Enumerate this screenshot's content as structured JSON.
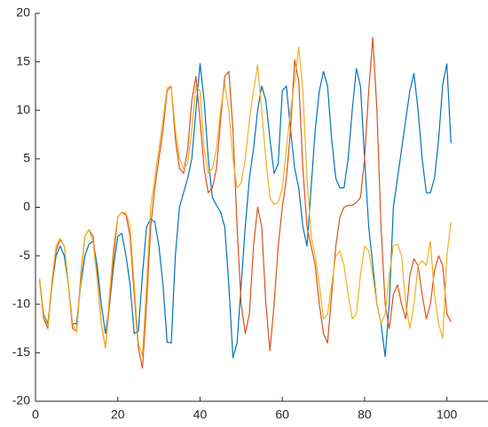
{
  "chart_data": {
    "type": "line",
    "x": [
      1,
      2,
      3,
      4,
      5,
      6,
      7,
      8,
      9,
      10,
      11,
      12,
      13,
      14,
      15,
      16,
      17,
      18,
      19,
      20,
      21,
      22,
      23,
      24,
      25,
      26,
      27,
      28,
      29,
      30,
      31,
      32,
      33,
      34,
      35,
      36,
      37,
      38,
      39,
      40,
      41,
      42,
      43,
      44,
      45,
      46,
      47,
      48,
      49,
      50,
      51,
      52,
      53,
      54,
      55,
      56,
      57,
      58,
      59,
      60,
      61,
      62,
      63,
      64,
      65,
      66,
      67,
      68,
      69,
      70,
      71,
      72,
      73,
      74,
      75,
      76,
      77,
      78,
      79,
      80,
      81,
      82,
      83,
      84,
      85,
      86,
      87,
      88,
      89,
      90,
      91,
      92,
      93,
      94,
      95,
      96,
      97,
      98,
      99,
      100,
      101
    ],
    "series": [
      {
        "color": "#0072BD",
        "values": [
          -7.5,
          -11,
          -12,
          -8,
          -5,
          -4,
          -5,
          -8,
          -12,
          -12,
          -8,
          -5,
          -3.8,
          -3.5,
          -6,
          -10,
          -13,
          -10,
          -6,
          -3,
          -2.7,
          -5,
          -8,
          -13,
          -12.8,
          -7,
          -2,
          -1.2,
          -1.5,
          -4,
          -8,
          -13.9,
          -14,
          -5,
          0,
          1.5,
          3,
          5,
          10,
          14.8,
          11,
          5,
          1,
          0.2,
          -0.5,
          -2,
          -8,
          -15.5,
          -14,
          -8,
          -2,
          3,
          6,
          10,
          12.5,
          11,
          7,
          3.5,
          4.5,
          12,
          12.5,
          8,
          4,
          2,
          -2,
          -4,
          2,
          8,
          12,
          14,
          12.5,
          7,
          3,
          2,
          2,
          5,
          10,
          14.3,
          12.5,
          5,
          -2,
          -6,
          -10,
          -12,
          -15.4,
          -10,
          0,
          3,
          6,
          9,
          12,
          13.8,
          10,
          5,
          1.5,
          1.5,
          3,
          7,
          12.7,
          14.8,
          6.6
        ]
      },
      {
        "color": "#D95319",
        "values": [
          -7.5,
          -11.5,
          -12.5,
          -8,
          -4.5,
          -3.3,
          -4,
          -8,
          -12.5,
          -12.8,
          -7,
          -3,
          -2.3,
          -3,
          -7,
          -12,
          -14.5,
          -10,
          -5,
          -1,
          -0.5,
          -0.8,
          -3,
          -9,
          -14.5,
          -16.6,
          -10,
          -2,
          2,
          5,
          8,
          12,
          12.5,
          7,
          4,
          3.5,
          6,
          11,
          13.5,
          9,
          4,
          1.5,
          2,
          4,
          9,
          13.5,
          14,
          8,
          -2,
          -10,
          -13,
          -11,
          -4,
          0,
          -2,
          -10,
          -14.8,
          -10,
          -4,
          0,
          3,
          8,
          15.2,
          13,
          4,
          -2,
          -4,
          -6,
          -10,
          -13,
          -14,
          -9,
          -4,
          -1,
          0,
          0.2,
          0.2,
          0.5,
          1,
          5,
          12,
          17.5,
          10,
          -2,
          -10,
          -12.5,
          -9,
          -8,
          -10,
          -11.5,
          -7,
          -5.3,
          -6,
          -9,
          -11.5,
          -10,
          -6.5,
          -5,
          -6,
          -11,
          -11.8
        ]
      },
      {
        "color": "#EDB120",
        "values": [
          -7.3,
          -11,
          -12.3,
          -7.5,
          -4,
          -3.2,
          -4,
          -8,
          -12,
          -12.9,
          -7.5,
          -3,
          -2.3,
          -3.5,
          -7.5,
          -12,
          -14.5,
          -9,
          -4,
          -1,
          -0.5,
          -0.6,
          -2,
          -8,
          -14,
          -15.3,
          -8,
          0,
          3,
          6,
          9,
          12.3,
          12.5,
          8,
          5,
          4,
          4.5,
          8,
          12.5,
          12,
          6,
          3.5,
          4,
          6,
          10,
          12.7,
          10,
          5,
          2,
          2.5,
          5,
          9,
          12,
          14.7,
          10,
          5,
          1,
          0.3,
          0.5,
          2,
          6,
          10,
          13,
          16.5,
          12,
          3,
          -3,
          -5,
          -8,
          -11.5,
          -11,
          -8,
          -5,
          -4.5,
          -6,
          -9,
          -11.5,
          -11,
          -7,
          -4,
          -4.5,
          -7,
          -10,
          -12,
          -11,
          -7,
          -4,
          -3.8,
          -5,
          -10,
          -12.5,
          -10,
          -6,
          -5.5,
          -6,
          -3.5,
          -9,
          -12,
          -13.5,
          -5,
          -1.5
        ]
      }
    ],
    "xlim": [
      0,
      110
    ],
    "ylim": [
      -20,
      20
    ],
    "xticks": [
      0,
      20,
      40,
      60,
      80,
      100
    ],
    "yticks": [
      -20,
      -15,
      -10,
      -5,
      0,
      5,
      10,
      15,
      20
    ]
  }
}
